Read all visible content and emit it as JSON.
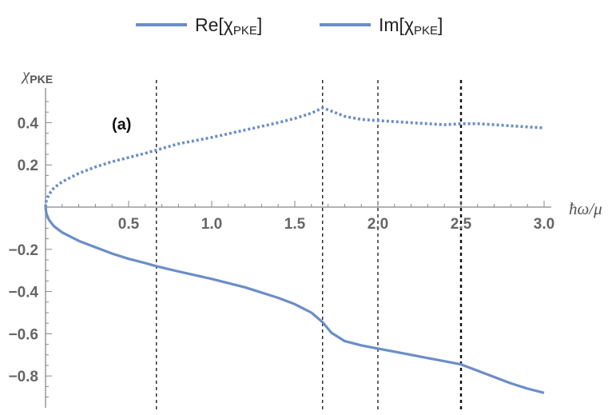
{
  "chart_data": {
    "type": "line",
    "xlabel": "ħω/μ",
    "ylabel_main": "χ",
    "ylabel_sub": "PKE",
    "xlim": [
      0,
      3.0
    ],
    "ylim": [
      -0.9,
      0.55
    ],
    "xticks": [
      "0.5",
      "1.0",
      "1.5",
      "2.0",
      "2.5",
      "3.0"
    ],
    "xtick_values": [
      0.5,
      1.0,
      1.5,
      2.0,
      2.5,
      3.0
    ],
    "yticks": [
      "0.4",
      "0.2",
      "-0.2",
      "-0.4",
      "-0.6",
      "-0.8"
    ],
    "ytick_values": [
      0.4,
      0.2,
      -0.2,
      -0.4,
      -0.6,
      -0.8
    ],
    "annotation": "(a)",
    "vlines": [
      0.667,
      1.667,
      2.0,
      2.5
    ],
    "legend": {
      "placement": "top",
      "entries": [
        {
          "prefix": "Re[χ",
          "sub": "PKE",
          "suffix": "]"
        },
        {
          "prefix": "Im[χ",
          "sub": "PKE",
          "suffix": "]"
        }
      ]
    },
    "color": "#6b8ec6",
    "series": [
      {
        "name": "Re[χPKE]",
        "style": "solid",
        "x": [
          0,
          0.005,
          0.02,
          0.05,
          0.1,
          0.2,
          0.3,
          0.4,
          0.5,
          0.6,
          0.667,
          0.8,
          1.0,
          1.2,
          1.4,
          1.5,
          1.6,
          1.667,
          1.72,
          1.8,
          1.9,
          2.0,
          2.1,
          2.2,
          2.3,
          2.4,
          2.5,
          2.6,
          2.7,
          2.8,
          2.9,
          3.0
        ],
        "y": [
          0,
          -0.03,
          -0.06,
          -0.09,
          -0.12,
          -0.16,
          -0.19,
          -0.22,
          -0.245,
          -0.265,
          -0.28,
          -0.305,
          -0.34,
          -0.38,
          -0.43,
          -0.46,
          -0.5,
          -0.545,
          -0.595,
          -0.635,
          -0.655,
          -0.67,
          -0.685,
          -0.7,
          -0.715,
          -0.73,
          -0.745,
          -0.775,
          -0.805,
          -0.835,
          -0.86,
          -0.88
        ]
      },
      {
        "name": "Im[χPKE]",
        "style": "dotted",
        "x": [
          0,
          0.005,
          0.02,
          0.05,
          0.1,
          0.2,
          0.3,
          0.4,
          0.5,
          0.6,
          0.667,
          0.8,
          1.0,
          1.2,
          1.4,
          1.5,
          1.6,
          1.667,
          1.72,
          1.8,
          1.9,
          2.0,
          2.1,
          2.2,
          2.3,
          2.4,
          2.5,
          2.6,
          2.7,
          2.8,
          2.9,
          3.0
        ],
        "y": [
          0,
          0.03,
          0.06,
          0.09,
          0.12,
          0.16,
          0.19,
          0.215,
          0.235,
          0.255,
          0.27,
          0.3,
          0.33,
          0.365,
          0.4,
          0.42,
          0.445,
          0.47,
          0.455,
          0.43,
          0.415,
          0.41,
          0.405,
          0.4,
          0.395,
          0.39,
          0.395,
          0.395,
          0.39,
          0.385,
          0.38,
          0.375
        ]
      }
    ]
  }
}
